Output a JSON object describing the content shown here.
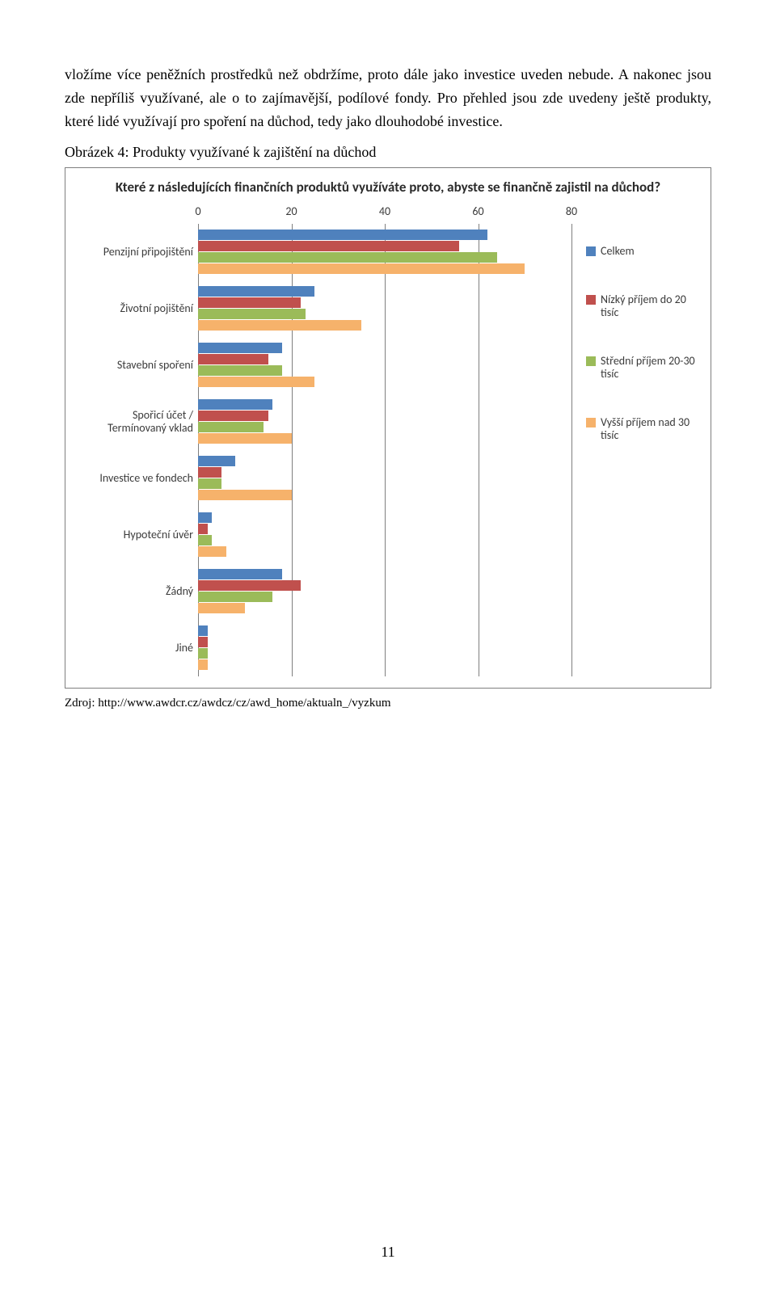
{
  "paragraph1": "vložíme více peněžních prostředků než obdržíme, proto dále jako investice uveden nebude. A nakonec jsou zde nepříliš využívané, ale o to zajímavější, podílové fondy. Pro přehled jsou zde uvedeny ještě produkty, které lidé využívají pro spoření na důchod, tedy jako dlouhodobé investice.",
  "caption": "Obrázek 4: Produkty využívané k zajištění na důchod",
  "source": "Zdroj: http://www.awdcr.cz/awdcz/cz/awd_home/aktualn_/vyzkum",
  "page_number": "11",
  "chart": {
    "type": "bar",
    "title": "Které z následujících finančních produktů využíváte proto, abyste se finančně zajistil na důchod?",
    "x_ticks": [
      0,
      20,
      40,
      60,
      80
    ],
    "x_max": 80,
    "categories": [
      "Penzijní připojištění",
      "Životní pojištění",
      "Stavební spoření",
      "Spořicí účet / Termínovaný vklad",
      "Investice ve fondech",
      "Hypoteční úvěr",
      "Žádný",
      "Jiné"
    ],
    "series": [
      {
        "label": "Celkem",
        "color": "#4f81bd",
        "values": [
          62,
          25,
          18,
          16,
          8,
          3,
          18,
          2
        ]
      },
      {
        "label": "Nízký příjem do 20 tisíc",
        "color": "#c0504d",
        "values": [
          56,
          22,
          15,
          15,
          5,
          2,
          22,
          2
        ]
      },
      {
        "label": "Střední příjem 20-30 tisíc",
        "color": "#9bbb59",
        "values": [
          64,
          23,
          18,
          14,
          5,
          3,
          16,
          2
        ]
      },
      {
        "label": "Vyšší příjem nad 30 tisíc",
        "color": "#f6b26b",
        "values": [
          70,
          35,
          25,
          20,
          20,
          6,
          10,
          2
        ]
      }
    ],
    "grid_color": "#7f7f7f",
    "background_color": "#ffffff",
    "category_row_height": 70,
    "xaxis_height": 24,
    "legend_top_spacing": 50
  }
}
